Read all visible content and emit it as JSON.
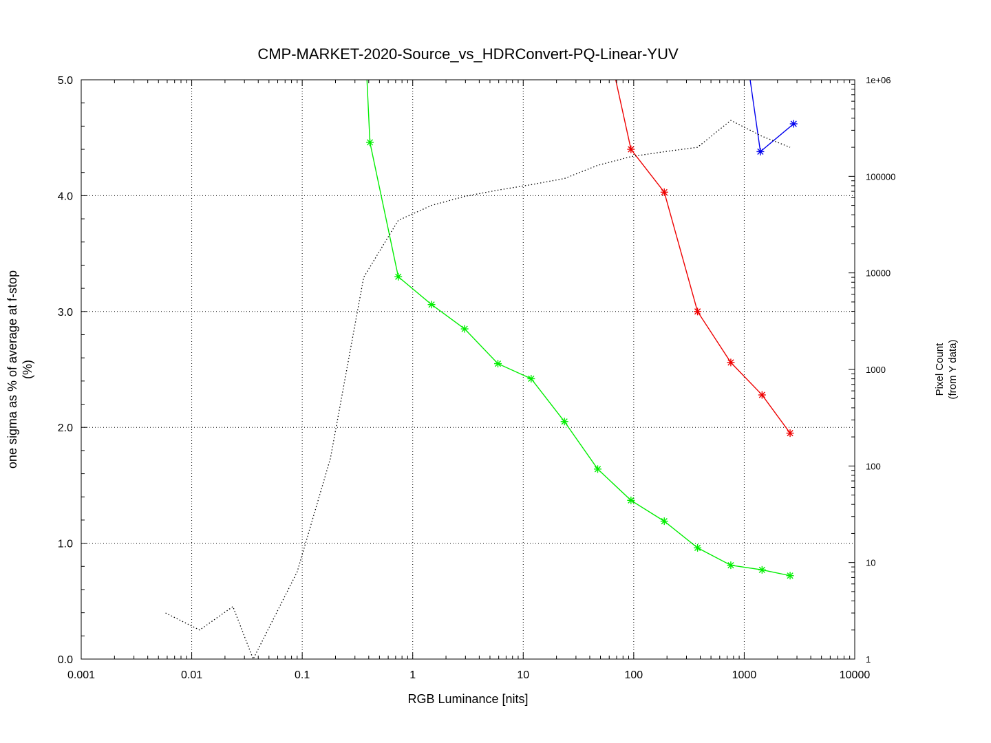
{
  "chart_data": {
    "type": "line",
    "title": "CMP-MARKET-2020-Source_vs_HDRConvert-PQ-Linear-YUV",
    "xlabel": "RGB Luminance [nits]",
    "ylabel": "one sigma as % of average at f-stop",
    "ylabel_unit": "(%)",
    "y2label": "Pixel Count",
    "y2label_sub": "(from Y data)",
    "x_scale": "log",
    "xlim": [
      0.001,
      10000
    ],
    "ylim": [
      0,
      5
    ],
    "y2_scale": "log",
    "y2lim": [
      1,
      1000000
    ],
    "grid": true,
    "x_ticks": [
      {
        "v": 0.001,
        "label": "0.001"
      },
      {
        "v": 0.01,
        "label": "0.01"
      },
      {
        "v": 0.1,
        "label": "0.1"
      },
      {
        "v": 1,
        "label": "1"
      },
      {
        "v": 10,
        "label": "10"
      },
      {
        "v": 100,
        "label": "100"
      },
      {
        "v": 1000,
        "label": "1000"
      },
      {
        "v": 10000,
        "label": "10000"
      }
    ],
    "y_ticks": [
      {
        "v": 0,
        "label": "0.0"
      },
      {
        "v": 1,
        "label": "1.0"
      },
      {
        "v": 2,
        "label": "2.0"
      },
      {
        "v": 3,
        "label": "3.0"
      },
      {
        "v": 4,
        "label": "4.0"
      },
      {
        "v": 5,
        "label": "5.0"
      }
    ],
    "y2_ticks": [
      {
        "v": 1,
        "label": "1"
      },
      {
        "v": 10,
        "label": "10"
      },
      {
        "v": 100,
        "label": "100"
      },
      {
        "v": 1000,
        "label": "1000"
      },
      {
        "v": 10000,
        "label": "10000"
      },
      {
        "v": 100000,
        "label": "100000"
      },
      {
        "v": 1000000,
        "label": "1e+06"
      }
    ],
    "series": [
      {
        "color": "#00ee00",
        "axis": "y",
        "marker": "star",
        "points": [
          [
            0.36,
            5.6
          ],
          [
            0.41,
            4.46
          ],
          [
            0.74,
            3.3
          ],
          [
            1.48,
            3.06
          ],
          [
            2.95,
            2.85
          ],
          [
            5.9,
            2.55
          ],
          [
            11.8,
            2.42
          ],
          [
            23.6,
            2.05
          ],
          [
            47.2,
            1.64
          ],
          [
            94.4,
            1.37
          ],
          [
            189,
            1.19
          ],
          [
            378,
            0.96
          ],
          [
            756,
            0.81
          ],
          [
            1450,
            0.77
          ],
          [
            2600,
            0.72
          ]
        ],
        "marked_from": 1
      },
      {
        "color": "#ee0000",
        "axis": "y",
        "marker": "star",
        "points": [
          [
            50,
            5.6
          ],
          [
            94.4,
            4.4
          ],
          [
            189,
            4.03
          ],
          [
            378,
            3.0
          ],
          [
            756,
            2.56
          ],
          [
            1450,
            2.28
          ],
          [
            2600,
            1.95
          ]
        ],
        "marked_from": 1
      },
      {
        "color": "#0000ee",
        "axis": "y",
        "marker": "star",
        "points": [
          [
            920,
            5.6
          ],
          [
            1400,
            4.38
          ],
          [
            2800,
            4.62
          ]
        ],
        "marked_from": 1
      },
      {
        "color": "#000000",
        "axis": "y2",
        "dashed": true,
        "marker": "none",
        "points": [
          [
            0.0058,
            3
          ],
          [
            0.0118,
            2
          ],
          [
            0.0236,
            3.5
          ],
          [
            0.036,
            1
          ],
          [
            0.09,
            8
          ],
          [
            0.18,
            120
          ],
          [
            0.36,
            9000
          ],
          [
            0.74,
            35000
          ],
          [
            1.48,
            50000
          ],
          [
            2.95,
            62000
          ],
          [
            5.9,
            72000
          ],
          [
            11.8,
            82000
          ],
          [
            23.6,
            95000
          ],
          [
            47.2,
            130000
          ],
          [
            94.4,
            160000
          ],
          [
            189,
            180000
          ],
          [
            378,
            200000
          ],
          [
            756,
            380000
          ],
          [
            1450,
            260000
          ],
          [
            2600,
            200000
          ]
        ]
      }
    ]
  }
}
